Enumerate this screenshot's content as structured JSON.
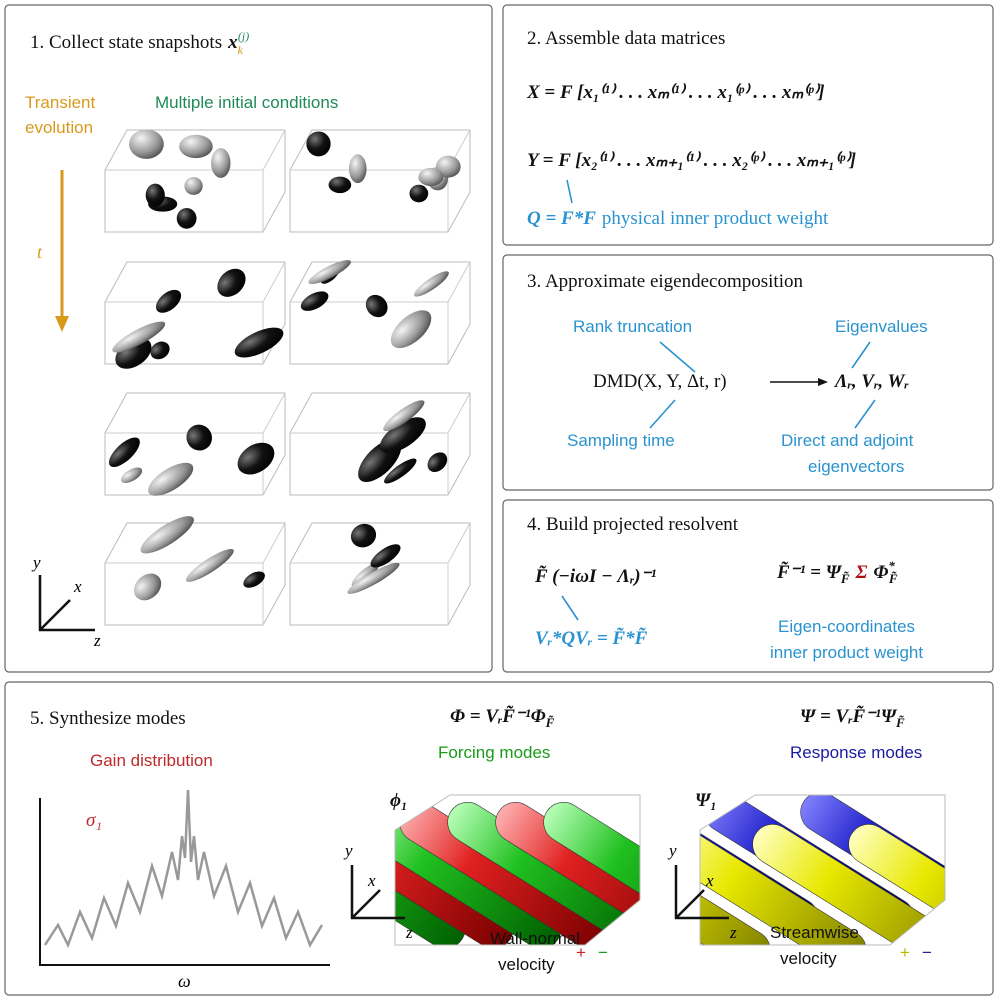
{
  "panel1": {
    "title": "1. Collect state snapshots",
    "symbol": "x",
    "symbol_sub": "k",
    "symbol_sup": "(j)",
    "transient": [
      "Transient",
      "evolution"
    ],
    "multiple": "Multiple initial conditions",
    "time": "t",
    "axes": {
      "y": "y",
      "x": "x",
      "z": "z"
    }
  },
  "panel2": {
    "title": "2. Assemble data matrices",
    "eq_x": "X = F [x₁⁽¹⁾ . . . xₘ⁽¹⁾ . . . x₁⁽ᵖ⁾ . . . xₘ⁽ᵖ⁾]",
    "eq_y": "Y = F [x₂⁽¹⁾ . . . xₘ₊₁⁽¹⁾ . . . x₂⁽ᵖ⁾ . . . xₘ₊₁⁽ᵖ⁾]",
    "weight_eq": "Q = F*F",
    "weight_text": "physical inner product weight"
  },
  "panel3": {
    "title": "3. Approximate eigendecomposition",
    "rank": "Rank truncation",
    "eigenvalues": "Eigenvalues",
    "dmd": "DMD(X, Y, Δt, r)",
    "result": "Λᵣ, Vᵣ, Wᵣ",
    "sampling": "Sampling time",
    "eigenvectors": [
      "Direct and adjoint",
      "eigenvectors"
    ]
  },
  "panel4": {
    "title": "4. Build projected resolvent",
    "resolvent": "F̃ (−iωI − Λᵣ)⁻¹",
    "inverse": {
      "lhs": "F̃⁻¹ = Ψ",
      "sub1": "F̃",
      "sigma": "Σ",
      "phi": "Φ",
      "sup": "*",
      "sub2": "F̃"
    },
    "weight_eq": "Vᵣ*QVᵣ = F̃*F̃",
    "weight_text": [
      "Eigen-coordinates",
      "inner product weight"
    ]
  },
  "panel5": {
    "title": "5. Synthesize modes",
    "gain": "Gain distribution",
    "sigma": "σ₁",
    "omega": "ω",
    "forcing_eq": {
      "main": "Φ = VᵣF̃⁻¹Φ",
      "sub": "F̃"
    },
    "forcing": "Forcing modes",
    "forcing_symbol": "ϕ₁",
    "response_eq": {
      "main": "Ψ = VᵣF̃⁻¹Ψ",
      "sub": "F̃"
    },
    "response": "Response modes",
    "response_symbol": "Ψ₁",
    "forcing_label": [
      "Wall-normal",
      "velocity"
    ],
    "forcing_signs": [
      "+",
      "−"
    ],
    "response_label": [
      "Streamwise",
      "velocity"
    ],
    "response_signs": [
      "+",
      "−"
    ],
    "axes": {
      "y": "y",
      "x": "x",
      "z": "z"
    }
  }
}
